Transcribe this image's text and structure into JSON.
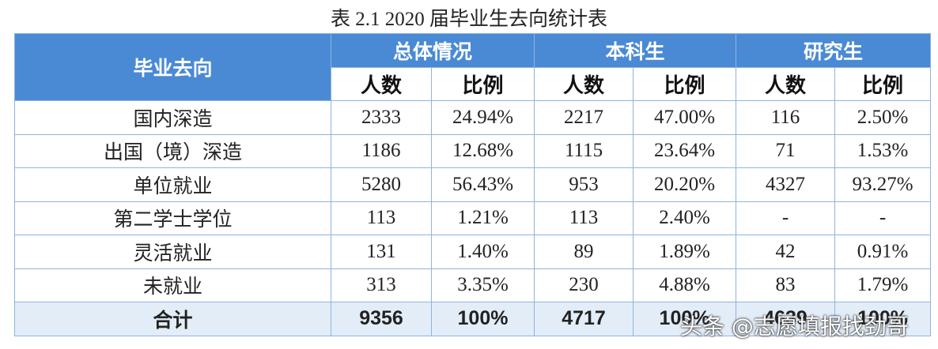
{
  "title": "表 2.1 2020 届毕业生去向统计表",
  "table": {
    "row_header": "毕业去向",
    "groups": [
      "总体情况",
      "本科生",
      "研究生"
    ],
    "columns": [
      "人数",
      "比例",
      "人数",
      "比例",
      "人数",
      "比例"
    ],
    "rows": [
      [
        "国内深造",
        "2333",
        "24.94%",
        "2217",
        "47.00%",
        "116",
        "2.50%"
      ],
      [
        "出国（境）深造",
        "1186",
        "12.68%",
        "1115",
        "23.64%",
        "71",
        "1.53%"
      ],
      [
        "单位就业",
        "5280",
        "56.43%",
        "953",
        "20.20%",
        "4327",
        "93.27%"
      ],
      [
        "第二学士学位",
        "113",
        "1.21%",
        "113",
        "2.40%",
        "-",
        "-"
      ],
      [
        "灵活就业",
        "131",
        "1.40%",
        "89",
        "1.89%",
        "42",
        "0.91%"
      ],
      [
        "未就业",
        "313",
        "3.35%",
        "230",
        "4.88%",
        "83",
        "1.79%"
      ],
      [
        "合计",
        "9356",
        "100%",
        "4717",
        "100%",
        "4639",
        "100%"
      ]
    ]
  },
  "watermark": "头条 @志愿填报找劲哥"
}
